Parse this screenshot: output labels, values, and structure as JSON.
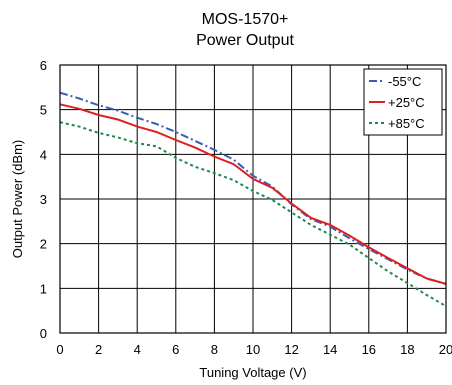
{
  "chart_data": {
    "type": "line",
    "title": "MOS-1570+",
    "subtitle": "Power Output",
    "xlabel": "Tuning Voltage (V)",
    "ylabel": "Output Power (dBm)",
    "xlim": [
      0,
      20
    ],
    "ylim": [
      0,
      6
    ],
    "x_ticks": [
      "0",
      "2",
      "4",
      "6",
      "8",
      "10",
      "12",
      "14",
      "16",
      "18",
      "20"
    ],
    "y_ticks": [
      "0",
      "1",
      "2",
      "3",
      "4",
      "5",
      "6"
    ],
    "grid": true,
    "legend_position": "top-right",
    "series": [
      {
        "name": "-55°C",
        "color": "#3a5fb0",
        "style": "dash-dot",
        "x": [
          0,
          1,
          2,
          3,
          4,
          5,
          6,
          7,
          8,
          9,
          10,
          11,
          12,
          13,
          14,
          15,
          16,
          17,
          18,
          19,
          20
        ],
        "y": [
          5.38,
          5.25,
          5.1,
          4.98,
          4.82,
          4.68,
          4.5,
          4.3,
          4.1,
          3.88,
          3.52,
          3.28,
          2.88,
          2.55,
          2.38,
          2.12,
          1.88,
          1.65,
          1.42,
          1.22,
          1.1
        ]
      },
      {
        "name": "+25°C",
        "color": "#e02020",
        "style": "solid",
        "x": [
          0,
          1,
          2,
          3,
          4,
          5,
          6,
          7,
          8,
          9,
          10,
          11,
          12,
          13,
          14,
          15,
          16,
          17,
          18,
          19,
          20
        ],
        "y": [
          5.12,
          5.02,
          4.88,
          4.78,
          4.62,
          4.5,
          4.32,
          4.15,
          3.95,
          3.78,
          3.45,
          3.25,
          2.9,
          2.58,
          2.42,
          2.18,
          1.92,
          1.68,
          1.45,
          1.22,
          1.1
        ]
      },
      {
        "name": "+85°C",
        "color": "#1a8a4a",
        "style": "dotted",
        "x": [
          0,
          1,
          2,
          3,
          4,
          5,
          6,
          7,
          8,
          9,
          10,
          11,
          12,
          13,
          14,
          15,
          16,
          17,
          18,
          19,
          20
        ],
        "y": [
          4.72,
          4.62,
          4.48,
          4.38,
          4.25,
          4.18,
          3.92,
          3.72,
          3.58,
          3.42,
          3.18,
          2.98,
          2.7,
          2.42,
          2.2,
          1.98,
          1.68,
          1.38,
          1.12,
          0.85,
          0.6
        ]
      }
    ]
  }
}
